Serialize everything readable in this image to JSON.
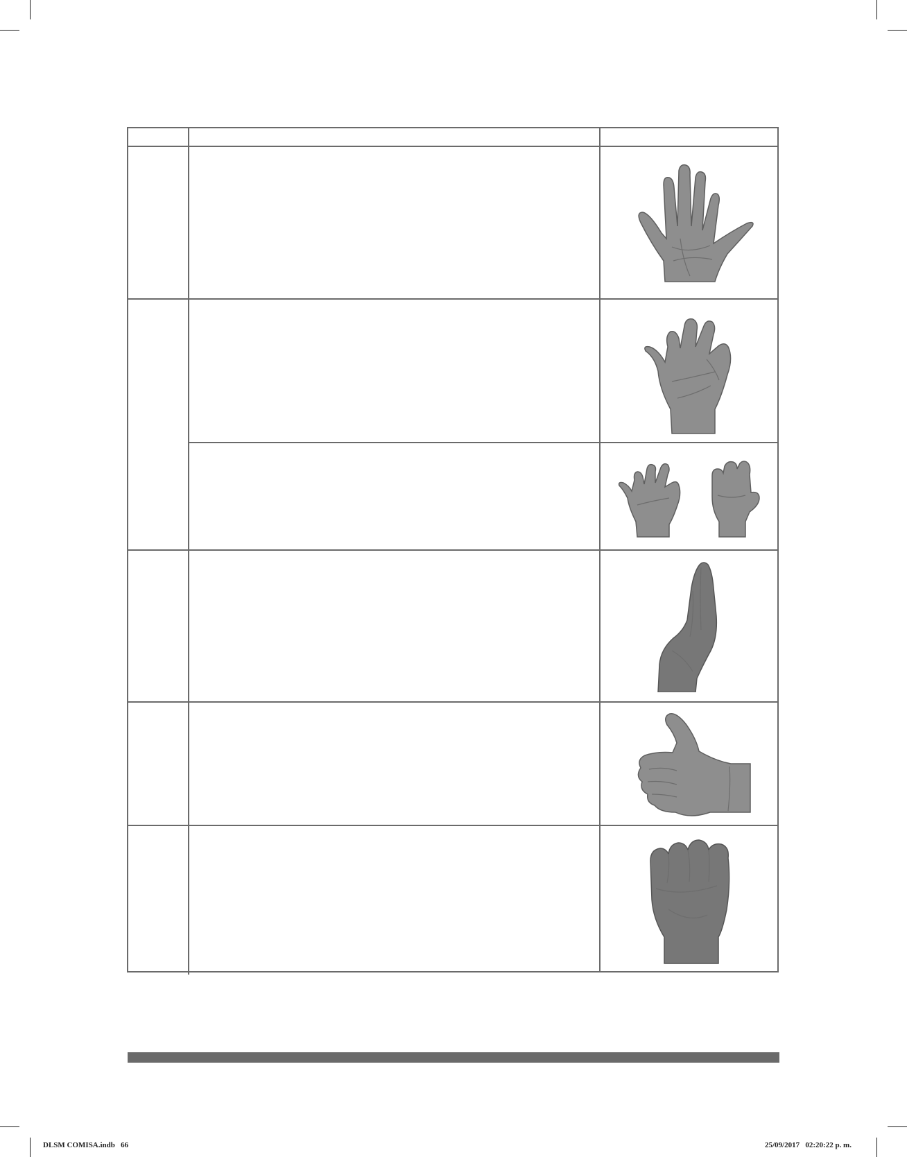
{
  "slug": {
    "file": "DLSM COMISA.indb   66",
    "timestamp": "25/09/2017   02:20:22 p. m."
  },
  "icons": [
    "open-hand-icon",
    "claw-hand-icon",
    "claw-to-fist-icon",
    "flat-o-hand-icon",
    "thumb-up-hand-icon",
    "fist-icon"
  ]
}
